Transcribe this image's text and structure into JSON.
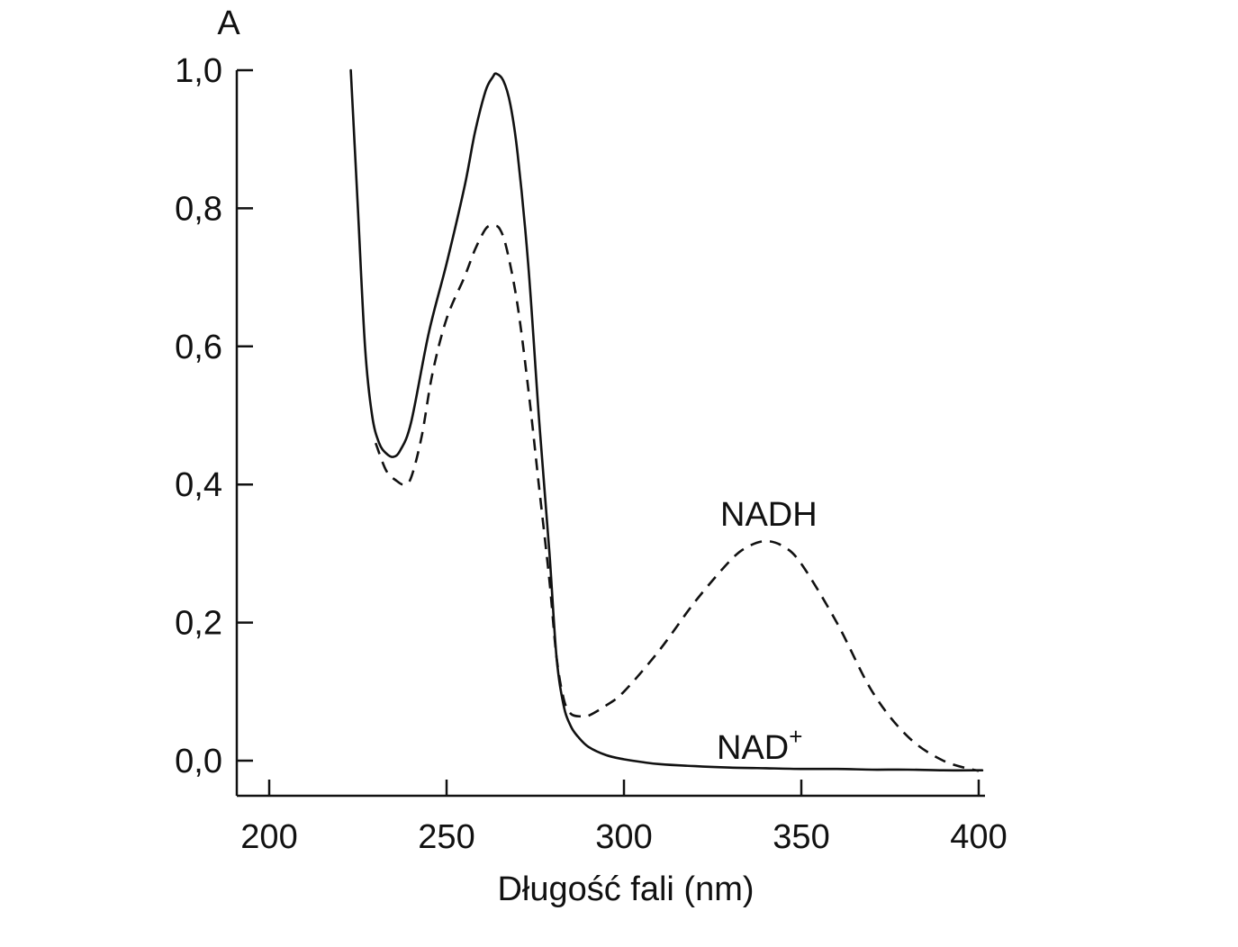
{
  "chart_data": {
    "type": "line",
    "title": "",
    "xlabel": "Długość fali (nm)",
    "ylabel": "A",
    "xlim": [
      192,
      402
    ],
    "ylim": [
      -0.05,
      1.0
    ],
    "xticks": [
      200,
      250,
      300,
      350,
      400
    ],
    "xtick_labels": [
      "200",
      "250",
      "300",
      "350",
      "400"
    ],
    "yticks": [
      0.0,
      0.2,
      0.4,
      0.6,
      0.8,
      1.0
    ],
    "ytick_labels": [
      "0,0",
      "0,2",
      "0,4",
      "0,6",
      "0,8",
      "1,0"
    ],
    "grid": false,
    "legend": "none",
    "series": [
      {
        "name": "NAD+",
        "label_main": "NAD",
        "label_sup": "+",
        "style": "solid",
        "color": "#111111",
        "x": [
          223,
          225,
          227,
          229,
          231,
          233,
          235,
          237,
          240,
          245,
          250,
          255,
          258,
          261,
          263,
          264,
          266,
          268,
          270,
          273,
          276,
          279,
          281,
          283,
          285,
          287,
          290,
          295,
          300,
          305,
          310,
          320,
          330,
          340,
          350,
          360,
          370,
          380,
          390,
          401
        ],
        "y": [
          1.0,
          0.8,
          0.6,
          0.5,
          0.46,
          0.445,
          0.44,
          0.45,
          0.49,
          0.62,
          0.72,
          0.83,
          0.91,
          0.97,
          0.99,
          0.995,
          0.985,
          0.95,
          0.88,
          0.72,
          0.5,
          0.3,
          0.15,
          0.08,
          0.05,
          0.035,
          0.02,
          0.008,
          0.002,
          -0.002,
          -0.005,
          -0.008,
          -0.01,
          -0.011,
          -0.012,
          -0.012,
          -0.013,
          -0.013,
          -0.014,
          -0.014
        ]
      },
      {
        "name": "NADH",
        "label_main": "NADH",
        "style": "dashed",
        "color": "#111111",
        "x": [
          230,
          233,
          236,
          238,
          240,
          243,
          246,
          250,
          255,
          258,
          261,
          263,
          265,
          267,
          270,
          273,
          276,
          279,
          281,
          283,
          285,
          288,
          290,
          295,
          300,
          310,
          320,
          330,
          335,
          340,
          345,
          350,
          360,
          370,
          380,
          390,
          400
        ],
        "y": [
          0.46,
          0.42,
          0.405,
          0.4,
          0.41,
          0.47,
          0.56,
          0.64,
          0.7,
          0.74,
          0.77,
          0.775,
          0.77,
          0.74,
          0.66,
          0.54,
          0.4,
          0.26,
          0.15,
          0.09,
          0.068,
          0.064,
          0.065,
          0.08,
          0.1,
          0.16,
          0.23,
          0.29,
          0.31,
          0.318,
          0.31,
          0.285,
          0.2,
          0.1,
          0.035,
          0.0,
          -0.015
        ]
      }
    ]
  }
}
